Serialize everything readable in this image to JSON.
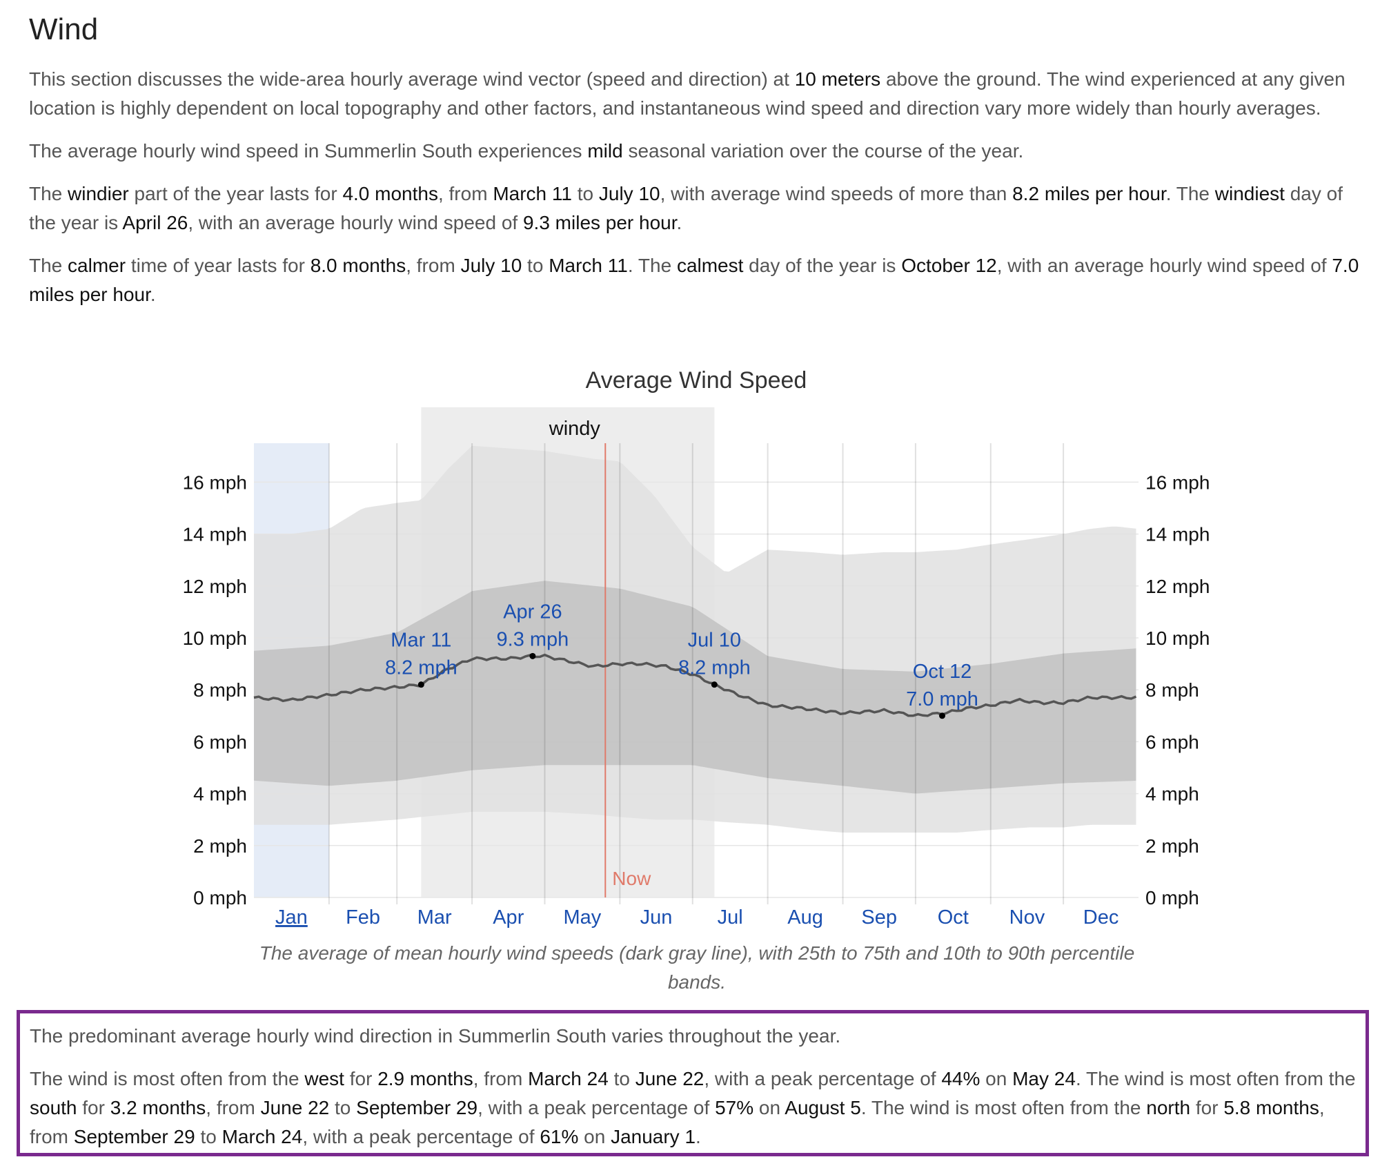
{
  "section": {
    "title": "Wind",
    "intro": [
      {
        "t": "This section discusses the wide-area hourly average wind vector (speed and direction) at "
      },
      {
        "t": "10 meters",
        "em": true
      },
      {
        "t": " above the ground. The wind experienced at any given location is highly dependent on local topography and other factors, and instantaneous wind speed and direction vary more widely than hourly averages."
      }
    ],
    "seasonal": [
      {
        "t": "The average hourly wind speed in Summerlin South experiences "
      },
      {
        "t": "mild",
        "em": true
      },
      {
        "t": " seasonal variation over the course of the year."
      }
    ],
    "windier": [
      {
        "t": "The "
      },
      {
        "t": "windier",
        "em": true
      },
      {
        "t": " part of the year lasts for "
      },
      {
        "t": "4.0 months",
        "em": true
      },
      {
        "t": ", from "
      },
      {
        "t": "March 11",
        "em": true
      },
      {
        "t": " to "
      },
      {
        "t": "July 10",
        "em": true
      },
      {
        "t": ", with average wind speeds of more than "
      },
      {
        "t": "8.2 miles per hour",
        "em": true
      },
      {
        "t": ". The "
      },
      {
        "t": "windiest",
        "em": true
      },
      {
        "t": " day of the year is "
      },
      {
        "t": "April 26",
        "em": true
      },
      {
        "t": ", with an average hourly wind speed of "
      },
      {
        "t": "9.3 miles per hour",
        "em": true
      },
      {
        "t": "."
      }
    ],
    "calmer": [
      {
        "t": "The "
      },
      {
        "t": "calmer",
        "em": true
      },
      {
        "t": " time of year lasts for "
      },
      {
        "t": "8.0 months",
        "em": true
      },
      {
        "t": ", from "
      },
      {
        "t": "July 10",
        "em": true
      },
      {
        "t": " to "
      },
      {
        "t": "March 11",
        "em": true
      },
      {
        "t": ". The "
      },
      {
        "t": "calmest",
        "em": true
      },
      {
        "t": " day of the year is "
      },
      {
        "t": "October 12",
        "em": true
      },
      {
        "t": ", with an average hourly wind speed of "
      },
      {
        "t": "7.0 miles per hour",
        "em": true
      },
      {
        "t": "."
      }
    ],
    "caption": "The average of mean hourly wind speeds (dark gray line), with 25th to 75th and 10th to 90th percentile bands.",
    "direction_summary": [
      {
        "t": "The predominant average hourly wind direction in Summerlin South varies throughout the year."
      }
    ],
    "direction_detail": [
      {
        "t": "The wind is most often from the "
      },
      {
        "t": "west",
        "em": true
      },
      {
        "t": " for "
      },
      {
        "t": "2.9 months",
        "em": true
      },
      {
        "t": ", from "
      },
      {
        "t": "March 24",
        "em": true
      },
      {
        "t": " to "
      },
      {
        "t": "June 22",
        "em": true
      },
      {
        "t": ", with a peak percentage of "
      },
      {
        "t": "44%",
        "em": true
      },
      {
        "t": " on "
      },
      {
        "t": "May 24",
        "em": true
      },
      {
        "t": ". The wind is most often from the "
      },
      {
        "t": "south",
        "em": true
      },
      {
        "t": " for "
      },
      {
        "t": "3.2 months",
        "em": true
      },
      {
        "t": ", from "
      },
      {
        "t": "June 22",
        "em": true
      },
      {
        "t": " to "
      },
      {
        "t": "September 29",
        "em": true
      },
      {
        "t": ", with a peak percentage of "
      },
      {
        "t": "57%",
        "em": true
      },
      {
        "t": " on "
      },
      {
        "t": "August 5",
        "em": true
      },
      {
        "t": ". The wind is most often from the "
      },
      {
        "t": "north",
        "em": true
      },
      {
        "t": " for "
      },
      {
        "t": "5.8 months",
        "em": true
      },
      {
        "t": ", from "
      },
      {
        "t": "September 29",
        "em": true
      },
      {
        "t": " to "
      },
      {
        "t": "March 24",
        "em": true
      },
      {
        "t": ", with a peak percentage of "
      },
      {
        "t": "61%",
        "em": true
      },
      {
        "t": " on "
      },
      {
        "t": "January 1",
        "em": true
      },
      {
        "t": "."
      }
    ]
  },
  "chart_data": {
    "type": "area",
    "title": "Average Wind Speed",
    "xlabel": "",
    "ylabel": "",
    "unit": "mph",
    "ylim": [
      0,
      17.5
    ],
    "y_ticks": [
      0,
      2,
      4,
      6,
      8,
      10,
      12,
      14,
      16
    ],
    "y_tick_labels": [
      "0 mph",
      "2 mph",
      "4 mph",
      "6 mph",
      "8 mph",
      "10 mph",
      "12 mph",
      "14 mph",
      "16 mph"
    ],
    "x_domain_days": [
      0,
      365
    ],
    "months": [
      "Jan",
      "Feb",
      "Mar",
      "Apr",
      "May",
      "Jun",
      "Jul",
      "Aug",
      "Sep",
      "Oct",
      "Nov",
      "Dec"
    ],
    "month_start_days": [
      0,
      31,
      59,
      90,
      120,
      151,
      181,
      212,
      243,
      273,
      304,
      334,
      365
    ],
    "selected_month": "Jan",
    "grid": true,
    "windy_band": {
      "label": "windy",
      "from_day": 69,
      "to_day": 190
    },
    "now": {
      "label": "Now",
      "day": 145
    },
    "series": [
      {
        "name": "mean",
        "x": [
          0,
          15,
          31,
          45,
          59,
          69,
          80,
          90,
          105,
          115,
          120,
          130,
          140,
          151,
          160,
          170,
          181,
          190,
          200,
          212,
          225,
          243,
          260,
          273,
          285,
          295,
          304,
          315,
          325,
          334,
          345,
          355,
          365
        ],
        "values": [
          7.7,
          7.6,
          7.8,
          8.0,
          8.1,
          8.2,
          8.8,
          9.2,
          9.2,
          9.3,
          9.3,
          9.1,
          8.9,
          9.0,
          9.0,
          8.9,
          8.6,
          8.2,
          7.8,
          7.4,
          7.3,
          7.1,
          7.2,
          7.0,
          7.1,
          7.3,
          7.4,
          7.6,
          7.5,
          7.5,
          7.7,
          7.7,
          7.7
        ]
      },
      {
        "name": "p25-p75",
        "x": [
          0,
          31,
          59,
          90,
          120,
          151,
          181,
          212,
          243,
          273,
          304,
          334,
          365
        ],
        "low": [
          4.5,
          4.3,
          4.5,
          4.9,
          5.1,
          5.1,
          5.1,
          4.6,
          4.3,
          4.0,
          4.2,
          4.4,
          4.5
        ],
        "high": [
          9.5,
          9.7,
          10.2,
          11.8,
          12.2,
          11.9,
          11.2,
          9.3,
          8.8,
          8.7,
          9.0,
          9.4,
          9.6
        ]
      },
      {
        "name": "p10-p90",
        "x": [
          0,
          15,
          31,
          45,
          59,
          69,
          80,
          90,
          105,
          120,
          140,
          151,
          165,
          181,
          195,
          212,
          230,
          243,
          260,
          273,
          290,
          304,
          320,
          334,
          345,
          355,
          365
        ],
        "low": [
          2.8,
          2.8,
          2.8,
          2.9,
          3.0,
          3.1,
          3.2,
          3.3,
          3.3,
          3.3,
          3.2,
          3.1,
          3.0,
          3.0,
          2.9,
          2.8,
          2.6,
          2.5,
          2.5,
          2.5,
          2.5,
          2.6,
          2.7,
          2.7,
          2.8,
          2.8,
          2.8
        ],
        "high": [
          14.0,
          14.0,
          14.2,
          15.0,
          15.2,
          15.3,
          16.5,
          17.4,
          17.3,
          17.2,
          16.9,
          16.8,
          15.5,
          13.5,
          12.5,
          13.4,
          13.3,
          13.2,
          13.3,
          13.3,
          13.4,
          13.6,
          13.8,
          14.0,
          14.2,
          14.3,
          14.2
        ]
      }
    ],
    "annotations": [
      {
        "day": 69,
        "value": 8.2,
        "date_label": "Mar 11",
        "value_label": "8.2 mph"
      },
      {
        "day": 115,
        "value": 9.3,
        "date_label": "Apr 26",
        "value_label": "9.3 mph"
      },
      {
        "day": 190,
        "value": 8.2,
        "date_label": "Jul 10",
        "value_label": "8.2 mph"
      },
      {
        "day": 284,
        "value": 7.0,
        "date_label": "Oct 12",
        "value_label": "7.0 mph"
      }
    ],
    "colors": {
      "band_outer": "#e0e0e0",
      "band_inner": "#c3c3c3",
      "mean_line": "#555555",
      "windy_shade": "#d8d8d8",
      "selected_month_shade": "#dce6f4",
      "now_line": "#e07a6a",
      "month_label": "#1a4fb0",
      "annotation": "#1a4fb0"
    }
  }
}
